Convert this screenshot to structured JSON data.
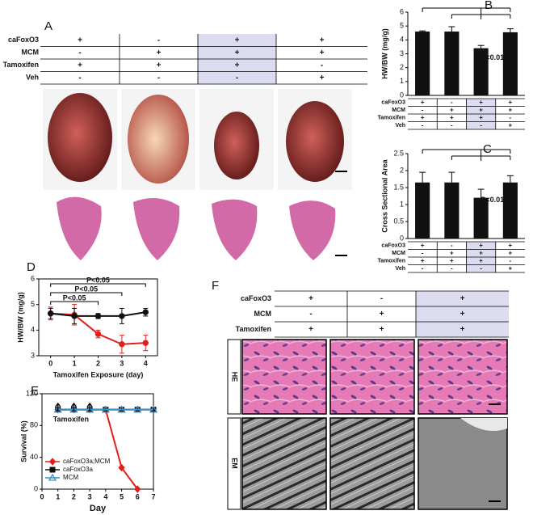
{
  "panels": {
    "A": {
      "label": "A",
      "highlight_column": 2,
      "conditions": [
        {
          "label": "caFoxO3",
          "cells": [
            "+",
            "-",
            "+",
            "+"
          ]
        },
        {
          "label": "MCM",
          "cells": [
            "-",
            "+",
            "+",
            "+"
          ]
        },
        {
          "label": "Tamoxifen",
          "cells": [
            "+",
            "+",
            "+",
            "-"
          ]
        },
        {
          "label": "Veh",
          "cells": [
            "-",
            "-",
            "-",
            "+"
          ]
        }
      ]
    },
    "F": {
      "label": "F",
      "highlight_column": 2,
      "rows": [
        "HE",
        "EM"
      ],
      "conditions": [
        {
          "label": "caFoxO3",
          "cells": [
            "+",
            "-",
            "+"
          ]
        },
        {
          "label": "MCM",
          "cells": [
            "-",
            "+",
            "+"
          ]
        },
        {
          "label": "Tamoxifen",
          "cells": [
            "+",
            "+",
            "+"
          ]
        }
      ]
    }
  },
  "chart_data": [
    {
      "type": "bar",
      "label": "B",
      "ylabel": "HW/BW (mg/g)",
      "ylim": [
        0,
        6
      ],
      "yticks": [
        0,
        1,
        2,
        3,
        4,
        5,
        6
      ],
      "values": [
        4.6,
        4.6,
        3.4,
        4.55
      ],
      "errors": [
        0.05,
        0.35,
        0.2,
        0.25
      ],
      "color": "#111111",
      "annotation": "P<0.01",
      "highlight_column": 2,
      "conditions": [
        {
          "label": "caFoxO3",
          "cells": [
            "+",
            "-",
            "+",
            "+"
          ]
        },
        {
          "label": "MCM",
          "cells": [
            "-",
            "+",
            "+",
            "+"
          ]
        },
        {
          "label": "Tamoxifen",
          "cells": [
            "+",
            "+",
            "+",
            "-"
          ]
        },
        {
          "label": "Veh",
          "cells": [
            "-",
            "-",
            "-",
            "+"
          ]
        }
      ]
    },
    {
      "type": "bar",
      "label": "C",
      "ylabel": "Cross Sectional Area",
      "ylim": [
        0,
        2.5
      ],
      "yticks": [
        0,
        0.5,
        1,
        1.5,
        2,
        2.5
      ],
      "values": [
        1.65,
        1.65,
        1.2,
        1.65
      ],
      "errors": [
        0.3,
        0.3,
        0.25,
        0.2
      ],
      "color": "#111111",
      "annotation": "P<0.01",
      "highlight_column": 2,
      "conditions": [
        {
          "label": "caFoxO3",
          "cells": [
            "+",
            "-",
            "+",
            "+"
          ]
        },
        {
          "label": "MCM",
          "cells": [
            "-",
            "+",
            "+",
            "+"
          ]
        },
        {
          "label": "Tamoxifen",
          "cells": [
            "+",
            "+",
            "+",
            "-"
          ]
        },
        {
          "label": "Veh",
          "cells": [
            "-",
            "-",
            "-",
            "+"
          ]
        }
      ]
    },
    {
      "type": "line",
      "label": "D",
      "ylabel": "HW/BW (mg/g)",
      "xlabel": "Tamoxifen Exposure (day)",
      "x": [
        0,
        1,
        2,
        3,
        4
      ],
      "xlim": [
        -0.5,
        4.5
      ],
      "xticks": [
        0,
        1,
        2,
        3,
        4
      ],
      "ylim": [
        3,
        6
      ],
      "yticks": [
        3,
        4,
        5,
        6
      ],
      "series": [
        {
          "color": "#e0201b",
          "marker": "circle",
          "values": [
            4.65,
            4.6,
            3.85,
            3.45,
            3.5
          ],
          "errors": [
            0.25,
            0.4,
            0.15,
            0.35,
            0.3
          ]
        },
        {
          "color": "#111111",
          "marker": "circle",
          "values": [
            4.65,
            4.55,
            4.55,
            4.55,
            4.7
          ],
          "errors": [
            0.2,
            0.3,
            0.1,
            0.3,
            0.15
          ]
        }
      ],
      "annotations": [
        {
          "text": "P<0.05",
          "x": [
            0,
            4
          ]
        },
        {
          "text": "P<0.05",
          "x": [
            0,
            3
          ]
        },
        {
          "text": "P<0.05",
          "x": [
            0,
            2
          ]
        }
      ]
    },
    {
      "type": "line",
      "label": "E",
      "ylabel": "Survival (%)",
      "xlabel": "Day",
      "x": [
        1,
        2,
        3,
        4,
        5,
        6,
        7
      ],
      "xlim": [
        0,
        7
      ],
      "xticks": [
        0,
        1,
        2,
        3,
        4,
        5,
        6,
        7
      ],
      "ylim": [
        0,
        120
      ],
      "yticks": [
        0,
        40,
        80,
        120
      ],
      "legend": "lower left",
      "arrow_text": "Tamoxifen",
      "arrow_x": [
        1,
        2,
        3
      ],
      "series": [
        {
          "name": "caFoxO3a;MCM",
          "color": "#e0201b",
          "marker": "diamond",
          "values": [
            100,
            100,
            100,
            100,
            27,
            0,
            null
          ]
        },
        {
          "name": "caFoxO3a",
          "color": "#111111",
          "marker": "square",
          "values": [
            100,
            100,
            100,
            100,
            100,
            100,
            100
          ]
        },
        {
          "name": "MCM",
          "color": "#3a8fc8",
          "marker": "triangle",
          "values": [
            100,
            100,
            100,
            100,
            100,
            100,
            100
          ]
        }
      ]
    }
  ]
}
